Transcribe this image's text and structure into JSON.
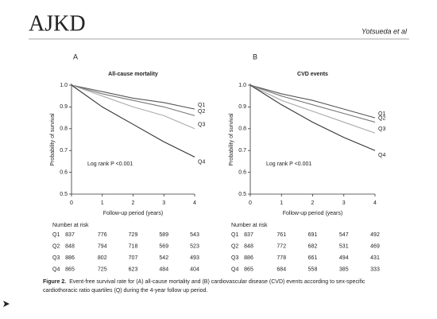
{
  "header": {
    "journal": "AJKD",
    "authors": "Yotsueda et al"
  },
  "panels": [
    "A",
    "B"
  ],
  "chart_data": [
    {
      "type": "line",
      "title": "All-cause mortality",
      "x_label": "Follow-up period (years)",
      "y_label": "Probability of survival",
      "annotation": "Log rank P <0.001",
      "x": [
        0,
        1,
        2,
        3,
        4
      ],
      "xlim": [
        0,
        4
      ],
      "xticks": [
        0,
        1,
        2,
        3,
        4
      ],
      "ylim": [
        0.5,
        1
      ],
      "yticks": [
        0.5,
        0.6,
        0.7,
        0.8,
        0.9,
        {
          "value": 1,
          "label": "1.0"
        }
      ],
      "series": [
        {
          "name": "Q1",
          "color": "#555555",
          "values": [
            1,
            0.97,
            0.94,
            0.92,
            0.89
          ]
        },
        {
          "name": "Q2",
          "color": "#777777",
          "values": [
            1,
            0.96,
            0.93,
            0.9,
            0.86
          ]
        },
        {
          "name": "Q3",
          "color": "#aaaaaa",
          "values": [
            1,
            0.95,
            0.9,
            0.86,
            0.8
          ]
        },
        {
          "name": "Q4",
          "color": "#333333",
          "values": [
            1,
            0.9,
            0.82,
            0.74,
            0.67
          ]
        }
      ]
    },
    {
      "type": "line",
      "title": "CVD events",
      "x_label": "Follow-up period (years)",
      "y_label": "Probability of survival",
      "annotation": "Log rank P <0.001",
      "x": [
        0,
        1,
        2,
        3,
        4
      ],
      "xlim": [
        0,
        4
      ],
      "xticks": [
        0,
        1,
        2,
        3,
        4
      ],
      "ylim": [
        0.5,
        1
      ],
      "yticks": [
        0.5,
        0.6,
        0.7,
        0.8,
        0.9,
        {
          "value": 1,
          "label": "1.0"
        }
      ],
      "series": [
        {
          "name": "Q1",
          "color": "#555555",
          "values": [
            1,
            0.96,
            0.93,
            0.89,
            0.85
          ]
        },
        {
          "name": "Q2",
          "color": "#777777",
          "values": [
            1,
            0.95,
            0.91,
            0.87,
            0.83
          ]
        },
        {
          "name": "Q3",
          "color": "#aaaaaa",
          "values": [
            1,
            0.93,
            0.88,
            0.83,
            0.78
          ]
        },
        {
          "name": "Q4",
          "color": "#333333",
          "values": [
            1,
            0.91,
            0.83,
            0.76,
            0.7
          ]
        }
      ]
    }
  ],
  "risk_tables": [
    {
      "heading": "Number at risk",
      "rows": [
        {
          "label": "Q1",
          "values": [
            837,
            776,
            729,
            589,
            543
          ]
        },
        {
          "label": "Q2",
          "values": [
            848,
            794,
            718,
            569,
            523
          ]
        },
        {
          "label": "Q3",
          "values": [
            886,
            802,
            707,
            542,
            493
          ]
        },
        {
          "label": "Q4",
          "values": [
            865,
            725,
            623,
            484,
            404
          ]
        }
      ]
    },
    {
      "heading": "Number at risk",
      "rows": [
        {
          "label": "Q1",
          "values": [
            837,
            761,
            691,
            547,
            492
          ]
        },
        {
          "label": "Q2",
          "values": [
            848,
            772,
            682,
            531,
            469
          ]
        },
        {
          "label": "Q3",
          "values": [
            886,
            778,
            661,
            494,
            431
          ]
        },
        {
          "label": "Q4",
          "values": [
            865,
            684,
            558,
            385,
            333
          ]
        }
      ]
    }
  ],
  "caption": {
    "label": "Figure 2.",
    "text": "Event-free survival rate for (A) all-cause mortality and (B) cardiovascular disease (CVD) events according to sex-specific cardiothoracic ratio quartiles (Q) during the 4-year follow up period."
  }
}
